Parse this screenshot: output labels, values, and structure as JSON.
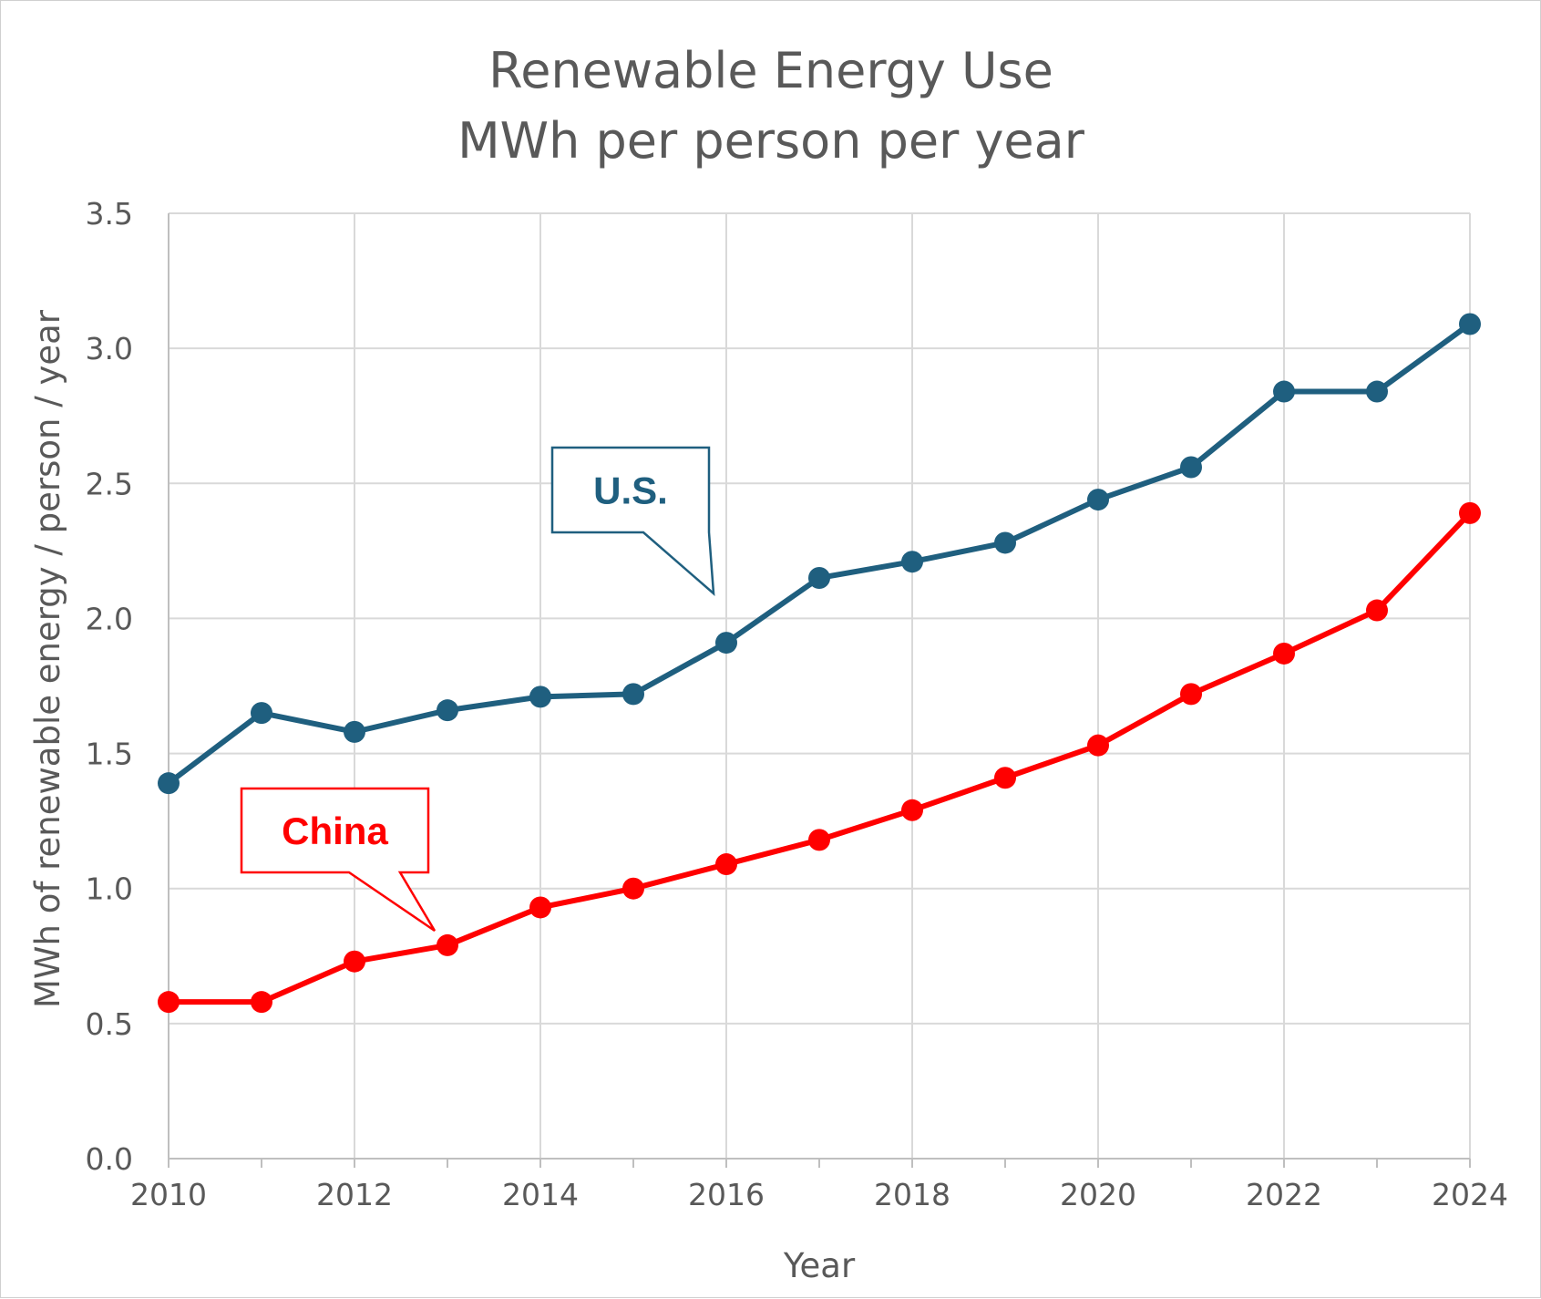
{
  "chart_data": {
    "type": "line",
    "title": "Renewable Energy Use",
    "subtitle": "MWh per person per year",
    "xlabel": "Year",
    "ylabel": "MWh of renewable energy / person / year",
    "x": [
      2010,
      2011,
      2012,
      2013,
      2014,
      2015,
      2016,
      2017,
      2018,
      2019,
      2020,
      2021,
      2022,
      2023,
      2024
    ],
    "x_tick_labels": [
      "2010",
      "2012",
      "2014",
      "2016",
      "2018",
      "2020",
      "2022",
      "2024"
    ],
    "y_tick_labels": [
      "0.0",
      "0.5",
      "1.0",
      "1.5",
      "2.0",
      "2.5",
      "3.0",
      "3.5"
    ],
    "xlim": [
      2010,
      2024
    ],
    "ylim": [
      0,
      3.5
    ],
    "grid": true,
    "series": [
      {
        "name": "U.S.",
        "color": "#1f5f7f",
        "values": [
          1.39,
          1.65,
          1.58,
          1.66,
          1.71,
          1.72,
          1.91,
          2.15,
          2.21,
          2.28,
          2.44,
          2.56,
          2.84,
          2.84,
          3.09
        ]
      },
      {
        "name": "China",
        "color": "#ff0000",
        "values": [
          0.58,
          0.58,
          0.73,
          0.79,
          0.93,
          1.0,
          1.09,
          1.18,
          1.29,
          1.41,
          1.53,
          1.72,
          1.87,
          2.03,
          2.39
        ]
      }
    ],
    "annotations": [
      {
        "text": "U.S.",
        "series": "U.S.",
        "points_to_x": 2016
      },
      {
        "text": "China",
        "series": "China",
        "points_to_x": 2013
      }
    ]
  }
}
